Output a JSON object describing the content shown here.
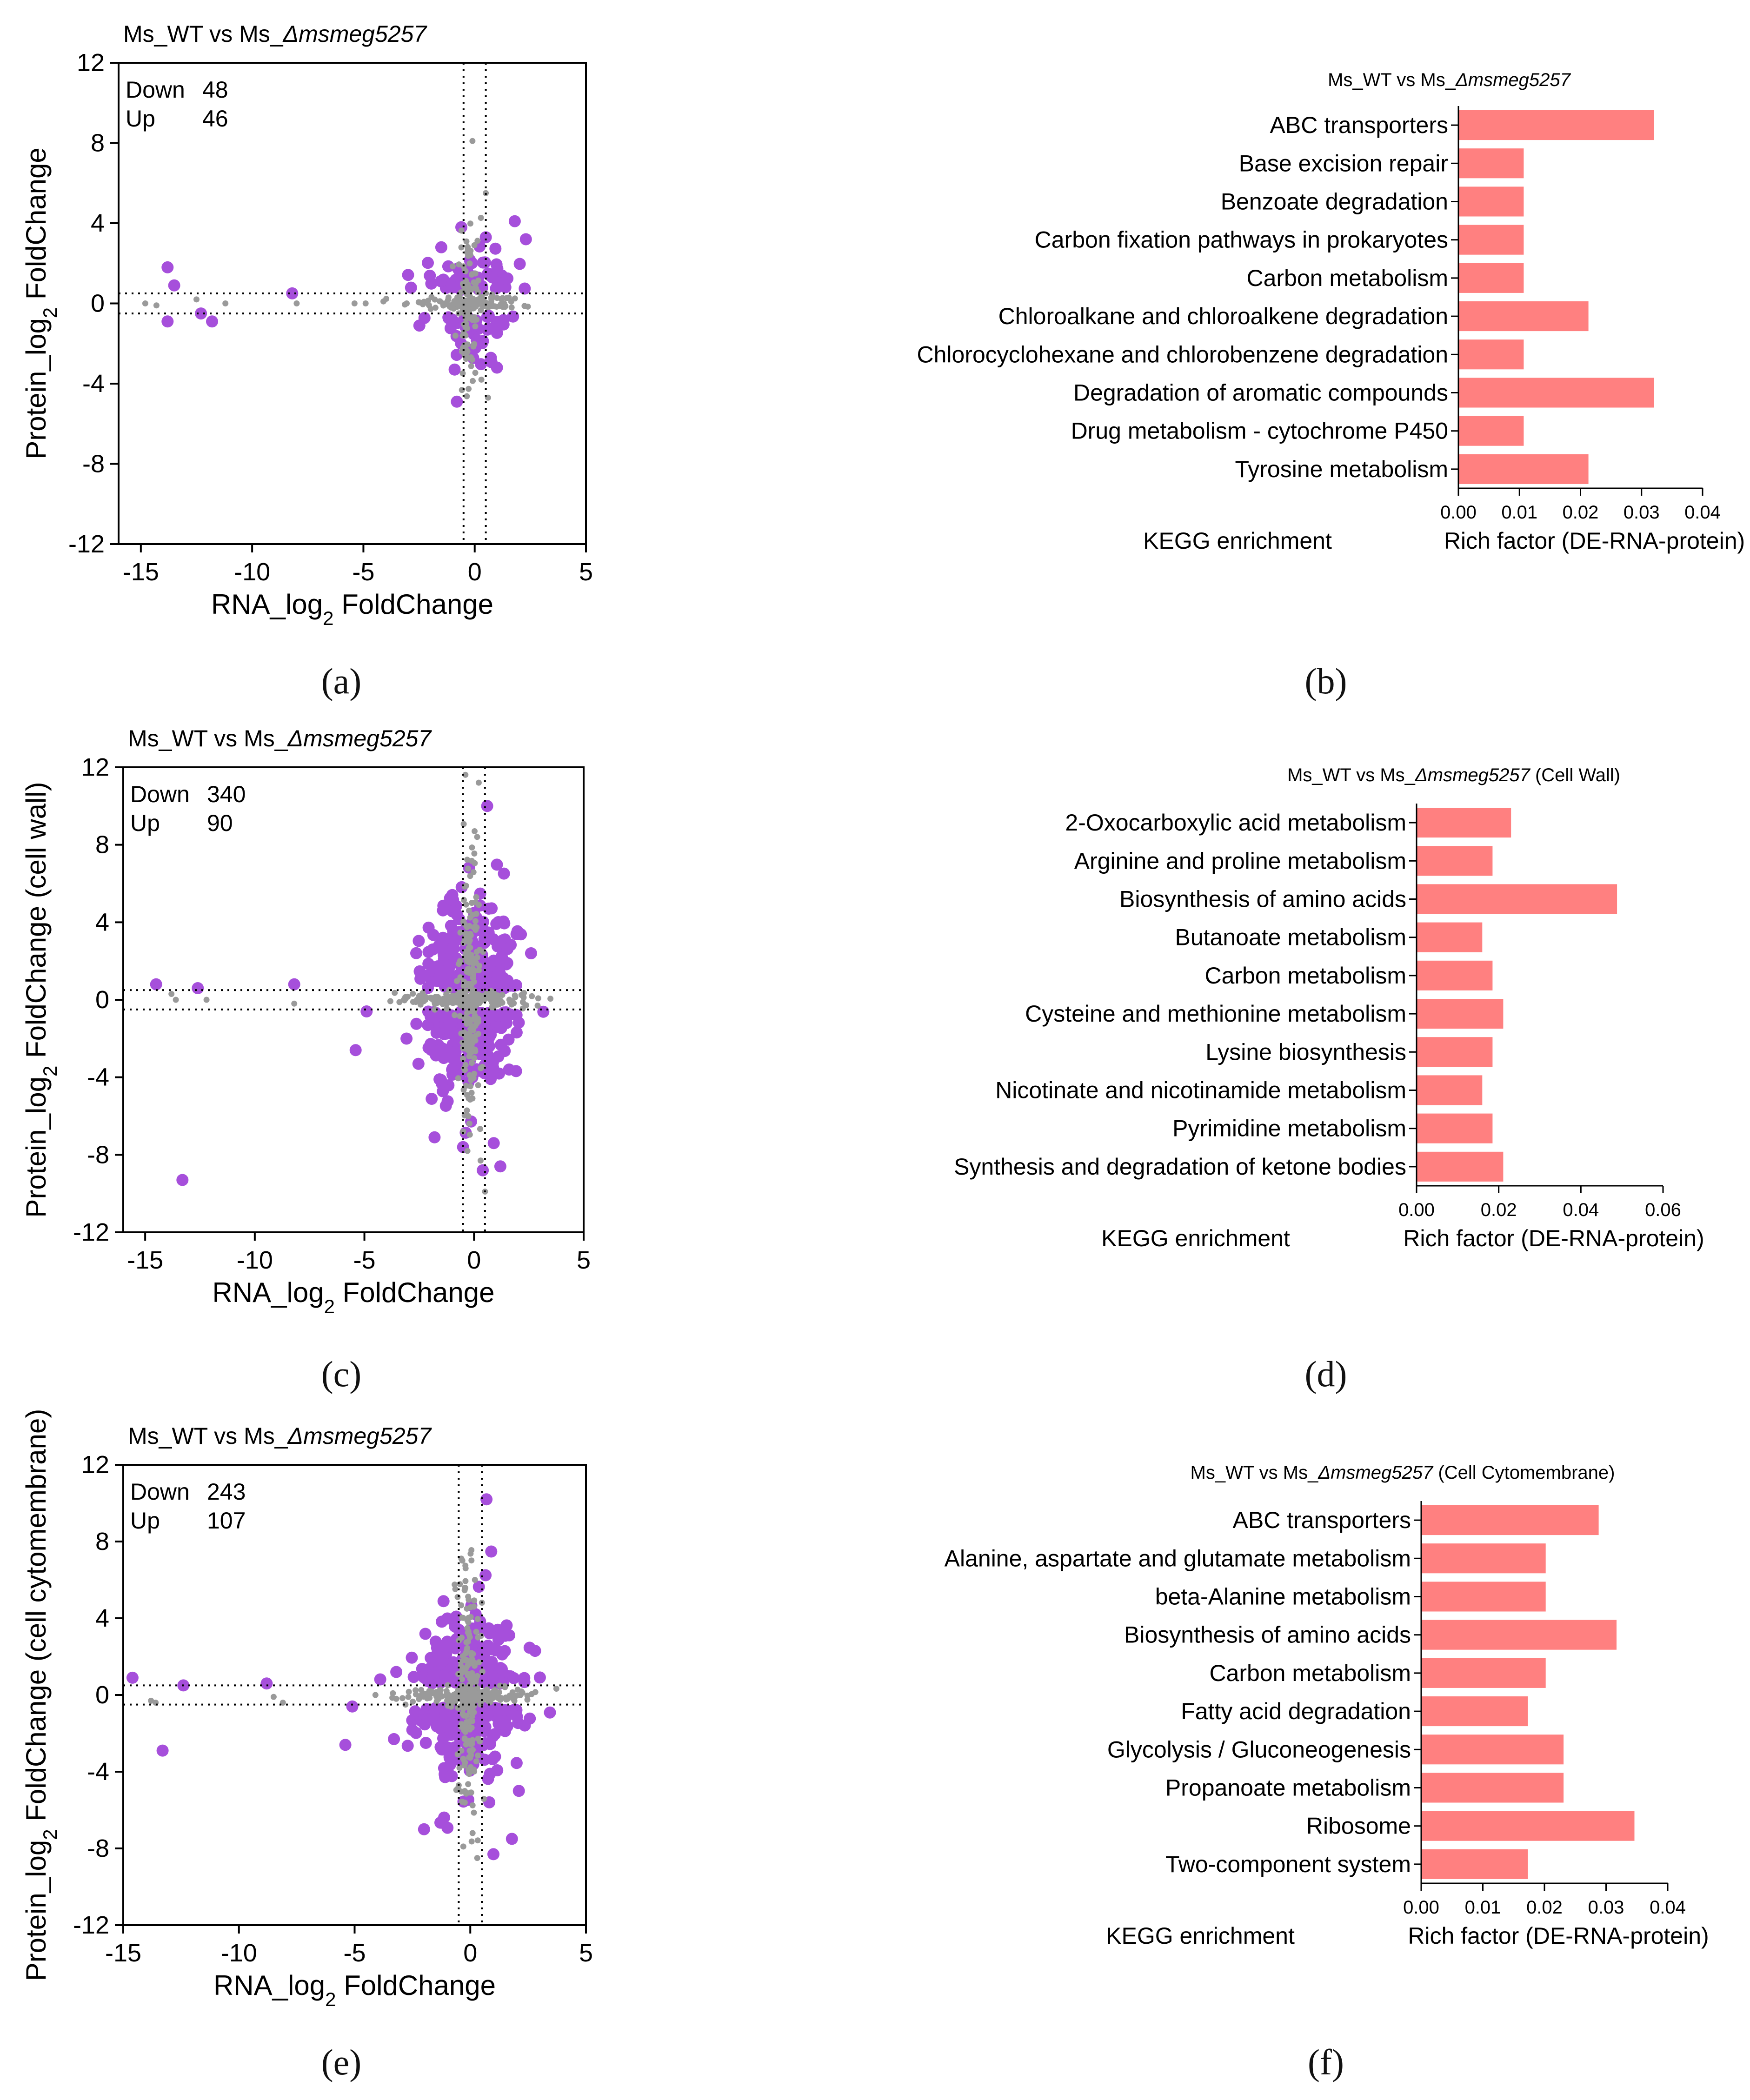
{
  "panel_letters": [
    "(a)",
    "(b)",
    "(c)",
    "(d)",
    "(e)",
    "(f)"
  ],
  "palette": {
    "up_down": "#a64fdb",
    "ns": "#9a9a9a",
    "bar": "#ff8080"
  },
  "chart_data": [
    {
      "id": "a",
      "type": "scatter",
      "title_prefix": "Ms_WT vs Ms_",
      "title_gene": "Δmsmeg5257",
      "title_suffix": "",
      "xlabel_pre": "RNA_log",
      "xlabel_sub": "2",
      "xlabel_post": " FoldChange",
      "ylabel_pre": "Protein_log",
      "ylabel_sub": "2",
      "ylabel_post": " FoldChange",
      "xlim": [
        -16,
        5
      ],
      "ylim": [
        -12,
        12
      ],
      "xticks": [
        -15,
        -10,
        -5,
        0,
        5
      ],
      "yticks": [
        -12,
        -8,
        -4,
        0,
        4,
        8,
        12
      ],
      "vlines": [
        -0.5,
        0.5
      ],
      "hlines": [
        -0.5,
        0.5
      ],
      "counts": [
        {
          "label": "Down",
          "value": "48"
        },
        {
          "label": "Up",
          "value": "46"
        }
      ],
      "cluster": {
        "x0": -0.3,
        "sx": 1.0,
        "sy": 1.3,
        "n_sig": 94,
        "n_ns": 220
      },
      "outliers_sig": [
        [
          -13.8,
          1.8
        ],
        [
          -13.5,
          0.9
        ],
        [
          -13.8,
          -0.9
        ],
        [
          -12.3,
          -0.5
        ],
        [
          -11.8,
          -0.9
        ],
        [
          -8.2,
          0.5
        ],
        [
          -1.5,
          2.8
        ],
        [
          -0.6,
          3.8
        ],
        [
          0.5,
          3.3
        ],
        [
          1.8,
          4.1
        ],
        [
          2.3,
          3.2
        ],
        [
          -0.9,
          -3.3
        ],
        [
          -0.8,
          -4.9
        ],
        [
          1.0,
          -3.2
        ]
      ],
      "outliers_ns": [
        [
          -0.1,
          8.1
        ],
        [
          0.5,
          5.5
        ],
        [
          -14.8,
          0.0
        ],
        [
          -14.3,
          -0.1
        ],
        [
          -12.5,
          0.2
        ],
        [
          -11.2,
          0.0
        ],
        [
          -8.0,
          0.0
        ],
        [
          -5.4,
          0.0
        ],
        [
          -4.9,
          0.0
        ],
        [
          -4.1,
          0.1
        ],
        [
          0.6,
          -4.7
        ],
        [
          0.3,
          -3.8
        ]
      ]
    },
    {
      "id": "b",
      "type": "bar",
      "title_prefix": "Ms_WT vs Ms_",
      "title_gene": "Δmsmeg5257",
      "title_suffix": "",
      "categories": [
        "ABC transporters",
        "Base excision repair",
        "Benzoate degradation",
        "Carbon fixation pathways in prokaryotes",
        "Carbon metabolism",
        "Chloroalkane and chloroalkene degradation",
        "Chlorocyclohexane and chlorobenzene degradation",
        "Degradation of aromatic compounds",
        "Drug metabolism - cytochrome P450",
        "Tyrosine metabolism"
      ],
      "values": [
        0.032,
        0.0107,
        0.0107,
        0.0107,
        0.0107,
        0.0213,
        0.0107,
        0.032,
        0.0107,
        0.0213
      ],
      "xlim": [
        0,
        0.04
      ],
      "xticks": [
        "0.00",
        "0.01",
        "0.02",
        "0.03",
        "0.04"
      ],
      "xlabel": "Rich factor (DE-RNA-protein)",
      "footnote": "KEGG enrichment"
    },
    {
      "id": "c",
      "type": "scatter",
      "title_prefix": "Ms_WT vs Ms_",
      "title_gene": "Δmsmeg5257",
      "title_suffix": "",
      "xlabel_pre": "RNA_log",
      "xlabel_sub": "2",
      "xlabel_post": " FoldChange",
      "ylabel_pre": "Protein_log",
      "ylabel_sub": "2",
      "ylabel_post": " FoldChange (cell wall)",
      "xlim": [
        -16,
        5
      ],
      "ylim": [
        -12,
        12
      ],
      "xticks": [
        -15,
        -10,
        -5,
        0,
        5
      ],
      "yticks": [
        -12,
        -8,
        -4,
        0,
        4,
        8,
        12
      ],
      "vlines": [
        -0.5,
        0.5
      ],
      "hlines": [
        -0.5,
        0.5
      ],
      "counts": [
        {
          "label": "Down",
          "value": "340"
        },
        {
          "label": "Up",
          "value": "90"
        }
      ],
      "cluster": {
        "x0": -0.2,
        "sx": 1.1,
        "sy": 2.3,
        "n_sig": 430,
        "n_ns": 380
      },
      "outliers_sig": [
        [
          -14.5,
          0.8
        ],
        [
          -12.6,
          0.6
        ],
        [
          -8.2,
          0.8
        ],
        [
          -13.3,
          -9.3
        ],
        [
          0.6,
          10.0
        ],
        [
          -5.4,
          -2.6
        ],
        [
          -4.9,
          -0.6
        ],
        [
          -1.8,
          -7.1
        ],
        [
          -0.5,
          -7.6
        ],
        [
          0.9,
          -7.4
        ],
        [
          1.2,
          -8.6
        ],
        [
          0.4,
          -8.8
        ],
        [
          2.6,
          2.4
        ],
        [
          1.6,
          -3.6
        ]
      ],
      "outliers_ns": [
        [
          -13.6,
          0.0
        ],
        [
          -13.8,
          0.3
        ],
        [
          -12.2,
          0.0
        ],
        [
          -8.2,
          -0.2
        ],
        [
          -3.2,
          0.0
        ],
        [
          -2.6,
          0.0
        ],
        [
          -2.5,
          0.2
        ],
        [
          2.9,
          -0.3
        ],
        [
          0.1,
          5.3
        ],
        [
          0.5,
          -9.9
        ],
        [
          0.3,
          -8.3
        ],
        [
          -0.3,
          -7.8
        ]
      ]
    },
    {
      "id": "d",
      "type": "bar",
      "title_prefix": "Ms_WT vs Ms_",
      "title_gene": "Δmsmeg5257",
      "title_suffix": " (Cell Wall)",
      "categories": [
        "2-Oxocarboxylic acid metabolism",
        "Arginine and proline metabolism",
        "Biosynthesis of amino acids",
        "Butanoate metabolism",
        "Carbon metabolism",
        "Cysteine and methionine metabolism",
        "Lysine biosynthesis",
        "Nicotinate and nicotinamide metabolism",
        "Pyrimidine metabolism",
        "Synthesis and degradation of ketone bodies"
      ],
      "values": [
        0.023,
        0.0185,
        0.0488,
        0.016,
        0.0185,
        0.0211,
        0.0185,
        0.016,
        0.0185,
        0.0211
      ],
      "xlim": [
        0,
        0.06
      ],
      "xticks": [
        "0.00",
        "0.02",
        "0.04",
        "0.06"
      ],
      "xlabel": "Rich factor (DE-RNA-protein)",
      "footnote": "KEGG enrichment"
    },
    {
      "id": "e",
      "type": "scatter",
      "title_prefix": "Ms_WT vs Ms_",
      "title_gene": "Δmsmeg5257",
      "title_suffix": "",
      "xlabel_pre": "RNA_log",
      "xlabel_sub": "2",
      "xlabel_post": " FoldChange",
      "ylabel_pre": "Protein_log",
      "ylabel_sub": "2",
      "ylabel_post": " FoldChange (cell cytomembrane)",
      "xlim": [
        -15,
        5
      ],
      "ylim": [
        -12,
        12
      ],
      "xticks": [
        -15,
        -10,
        -5,
        0,
        5
      ],
      "yticks": [
        -12,
        -8,
        -4,
        0,
        4,
        8,
        12
      ],
      "vlines": [
        -0.5,
        0.5
      ],
      "hlines": [
        -0.5,
        0.5
      ],
      "counts": [
        {
          "label": "Down",
          "value": "243"
        },
        {
          "label": "Up",
          "value": "107"
        }
      ],
      "cluster": {
        "x0": -0.1,
        "sx": 1.1,
        "sy": 2.1,
        "n_sig": 350,
        "n_ns": 360
      },
      "outliers_sig": [
        [
          -14.6,
          0.9
        ],
        [
          -12.4,
          0.5
        ],
        [
          -8.8,
          0.6
        ],
        [
          -13.3,
          -2.9
        ],
        [
          -5.4,
          -2.6
        ],
        [
          -5.1,
          -0.6
        ],
        [
          -3.2,
          1.2
        ],
        [
          0.7,
          10.2
        ],
        [
          2.8,
          2.3
        ],
        [
          -2.0,
          -7.0
        ],
        [
          1.0,
          -8.3
        ],
        [
          1.8,
          -7.5
        ],
        [
          -3.3,
          -2.3
        ]
      ],
      "outliers_ns": [
        [
          -13.8,
          -0.3
        ],
        [
          -13.6,
          -0.4
        ],
        [
          -8.5,
          -0.1
        ],
        [
          -8.1,
          -0.4
        ],
        [
          -4.1,
          0.0
        ],
        [
          -3.2,
          -0.2
        ],
        [
          0.2,
          6.0
        ],
        [
          0.3,
          -8.5
        ],
        [
          -0.3,
          -7.9
        ],
        [
          0.1,
          -7.2
        ]
      ]
    },
    {
      "id": "f",
      "type": "bar",
      "title_prefix": "Ms_WT vs Ms_",
      "title_gene": "Δmsmeg5257",
      "title_suffix": " (Cell Cytomembrane)",
      "categories": [
        "ABC transporters",
        "Alanine, aspartate and glutamate metabolism",
        "beta-Alanine metabolism",
        "Biosynthesis of amino acids",
        "Carbon metabolism",
        "Fatty acid degradation",
        "Glycolysis / Gluconeogenesis",
        "Propanoate metabolism",
        "Ribosome",
        "Two-component system"
      ],
      "values": [
        0.0288,
        0.0202,
        0.0202,
        0.0317,
        0.0202,
        0.0173,
        0.0231,
        0.0231,
        0.0346,
        0.0173
      ],
      "xlim": [
        0,
        0.04
      ],
      "xticks": [
        "0.00",
        "0.01",
        "0.02",
        "0.03",
        "0.04"
      ],
      "xlabel": "Rich factor (DE-RNA-protein)",
      "footnote": "KEGG enrichment"
    }
  ]
}
